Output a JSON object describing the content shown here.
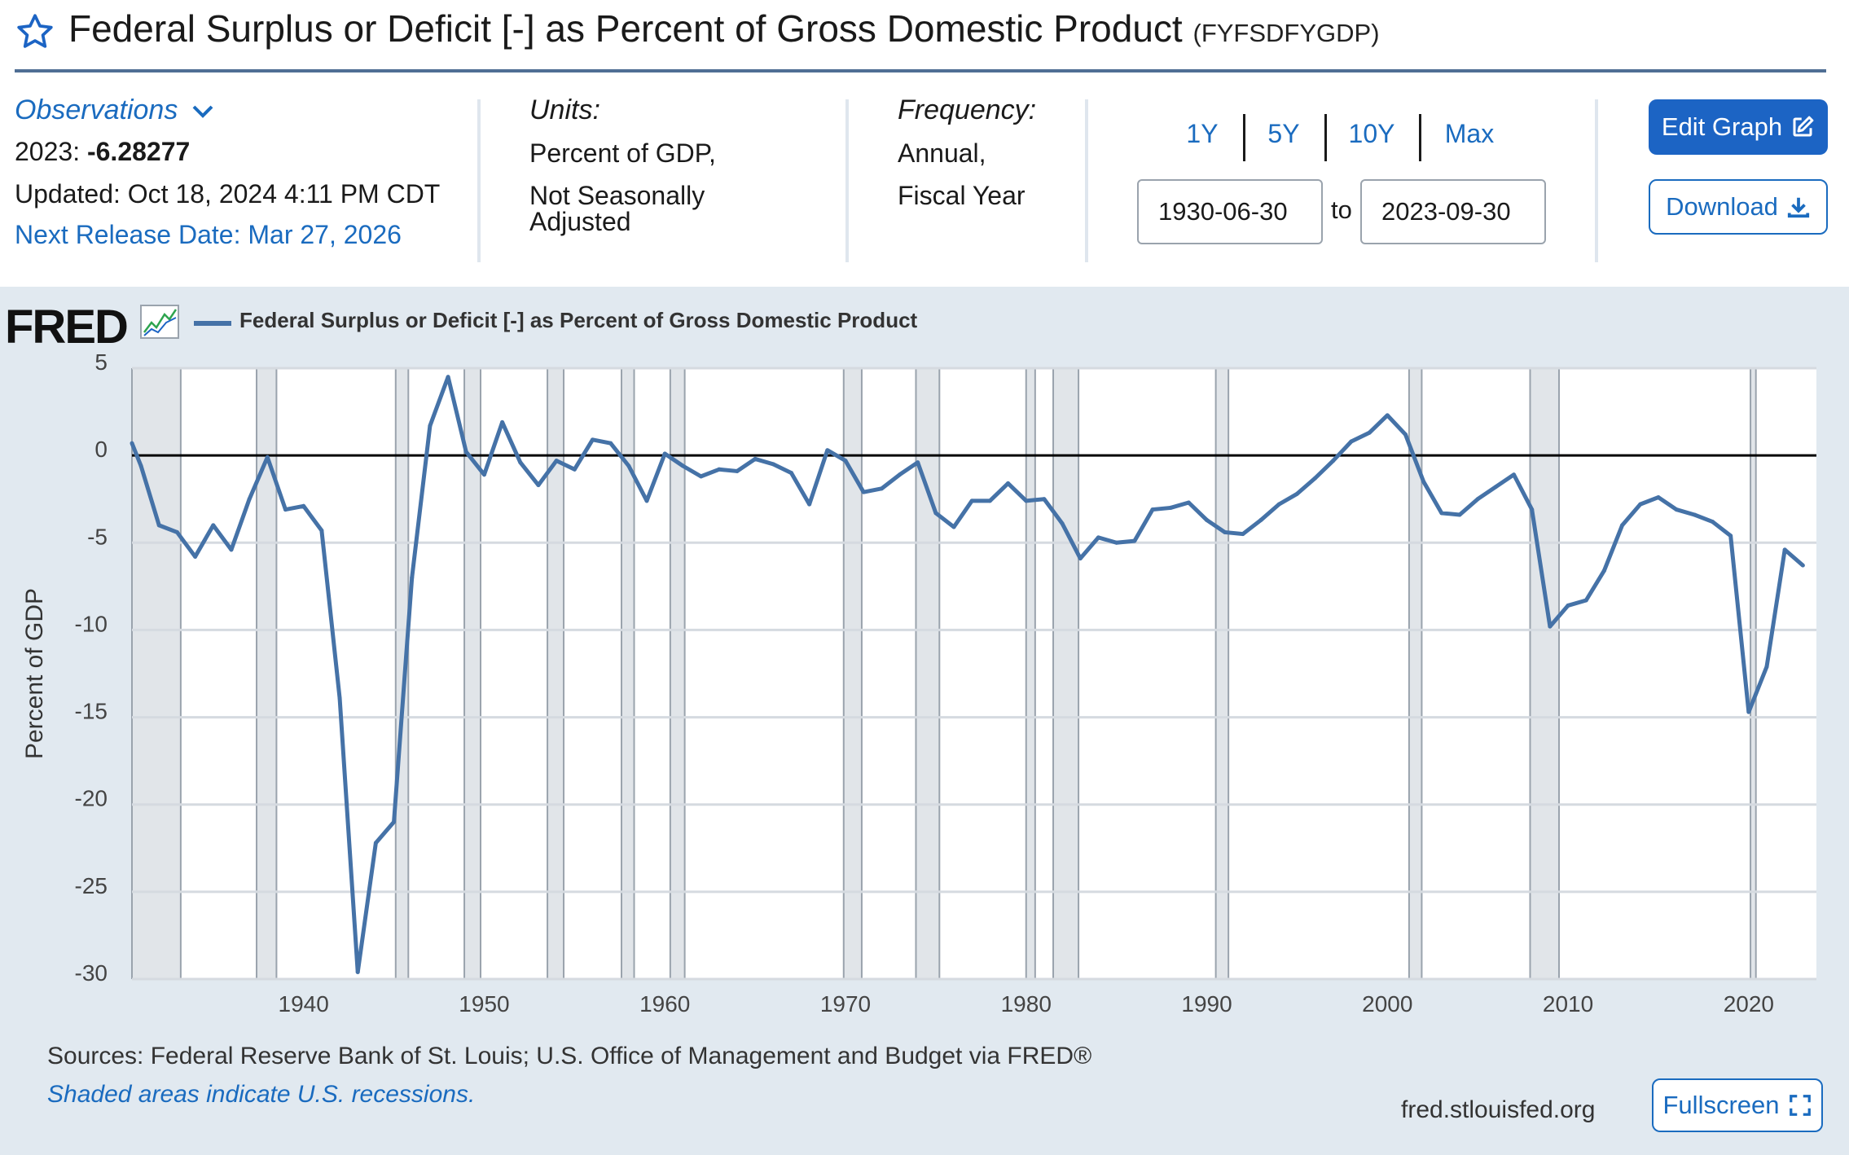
{
  "header": {
    "title": "Federal Surplus or Deficit [-] as Percent of Gross Domestic Product",
    "series_id": "(FYFSDFYGDP)"
  },
  "meta": {
    "observations_label": "Observations",
    "latest_period": "2023:",
    "latest_value": "-6.28277",
    "updated": "Updated: Oct 18, 2024 4:11 PM CDT",
    "next_release": "Next Release Date: Mar 27, 2026",
    "units_label": "Units:",
    "units_line1": "Percent of GDP,",
    "units_line2": "Not Seasonally",
    "units_line3": "Adjusted",
    "frequency_label": "Frequency:",
    "frequency_line1": "Annual,",
    "frequency_line2": "Fiscal Year"
  },
  "range": {
    "buttons": [
      "1Y",
      "5Y",
      "10Y",
      "Max"
    ],
    "start_date": "1930-06-30",
    "to_label": "to",
    "end_date": "2023-09-30"
  },
  "actions": {
    "edit_graph": "Edit Graph",
    "download": "Download",
    "fullscreen": "Fullscreen"
  },
  "graph": {
    "logo": "FRED",
    "sources": "Sources: Federal Reserve Bank of St. Louis; U.S. Office of Management and Budget via FRED®",
    "shaded_note": "Shaded areas indicate U.S. recessions.",
    "site": "fred.stlouisfed.org"
  },
  "colors": {
    "line": "#4572a7",
    "accent": "#1c64c4",
    "link": "#1a6bbf",
    "panel": "#e1e9f0",
    "recession": "#e1e5e9"
  },
  "chart_data": {
    "type": "line",
    "title": "Federal Surplus or Deficit [-] as Percent of Gross Domestic Product",
    "ylabel": "Percent of GDP",
    "xlabel": "",
    "ylim": [
      -30,
      5
    ],
    "xlim": [
      1930.5,
      2023.75
    ],
    "yticks": [
      5,
      0,
      -5,
      -10,
      -15,
      -20,
      -25,
      -30
    ],
    "xticks": [
      1940,
      1950,
      1960,
      1970,
      1980,
      1990,
      2000,
      2010,
      2020
    ],
    "legend": "top-left",
    "series": [
      {
        "name": "Federal Surplus or Deficit [-] as Percent of Gross Domestic Product",
        "x": [
          1930,
          1931,
          1932,
          1933,
          1934,
          1935,
          1936,
          1937,
          1938,
          1939,
          1940,
          1941,
          1942,
          1943,
          1944,
          1945,
          1946,
          1947,
          1948,
          1949,
          1950,
          1951,
          1952,
          1953,
          1954,
          1955,
          1956,
          1957,
          1958,
          1959,
          1960,
          1961,
          1962,
          1963,
          1964,
          1965,
          1966,
          1967,
          1968,
          1969,
          1970,
          1971,
          1972,
          1973,
          1974,
          1975,
          1976,
          1977,
          1978,
          1979,
          1980,
          1981,
          1982,
          1983,
          1984,
          1985,
          1986,
          1987,
          1988,
          1989,
          1990,
          1991,
          1992,
          1993,
          1994,
          1995,
          1996,
          1997,
          1998,
          1999,
          2000,
          2001,
          2002,
          2003,
          2004,
          2005,
          2006,
          2007,
          2008,
          2009,
          2010,
          2011,
          2012,
          2013,
          2014,
          2015,
          2016,
          2017,
          2018,
          2019,
          2020,
          2021,
          2022,
          2023
        ],
        "values": [
          0.7,
          -0.6,
          -4.0,
          -4.4,
          -5.8,
          -4.0,
          -5.4,
          -2.5,
          -0.1,
          -3.1,
          -2.9,
          -4.3,
          -13.9,
          -29.6,
          -22.2,
          -21.0,
          -7.0,
          1.7,
          4.5,
          0.2,
          -1.1,
          1.9,
          -0.4,
          -1.7,
          -0.3,
          -0.8,
          0.9,
          0.7,
          -0.6,
          -2.6,
          0.1,
          -0.6,
          -1.2,
          -0.8,
          -0.9,
          -0.2,
          -0.5,
          -1.0,
          -2.8,
          0.3,
          -0.3,
          -2.1,
          -1.9,
          -1.1,
          -0.4,
          -3.3,
          -4.1,
          -2.6,
          -2.6,
          -1.6,
          -2.6,
          -2.5,
          -3.9,
          -5.9,
          -4.7,
          -5.0,
          -4.9,
          -3.1,
          -3.0,
          -2.7,
          -3.7,
          -4.4,
          -4.5,
          -3.7,
          -2.8,
          -2.2,
          -1.3,
          -0.3,
          0.8,
          1.3,
          2.3,
          1.2,
          -1.5,
          -3.3,
          -3.4,
          -2.5,
          -1.8,
          -1.1,
          -3.1,
          -9.8,
          -8.6,
          -8.3,
          -6.6,
          -4.0,
          -2.8,
          -2.4,
          -3.1,
          -3.4,
          -3.8,
          -4.6,
          -14.7,
          -12.1,
          -5.4,
          -6.3
        ]
      }
    ],
    "recessions": [
      [
        1929.6,
        1933.2
      ],
      [
        1937.4,
        1938.5
      ],
      [
        1945.1,
        1945.8
      ],
      [
        1948.9,
        1949.8
      ],
      [
        1953.5,
        1954.4
      ],
      [
        1957.6,
        1958.3
      ],
      [
        1960.3,
        1961.1
      ],
      [
        1969.9,
        1970.9
      ],
      [
        1973.9,
        1975.2
      ],
      [
        1980.0,
        1980.5
      ],
      [
        1981.5,
        1982.9
      ],
      [
        1990.5,
        1991.2
      ],
      [
        2001.2,
        2001.9
      ],
      [
        2007.9,
        2009.5
      ],
      [
        2020.1,
        2020.4
      ]
    ]
  }
}
